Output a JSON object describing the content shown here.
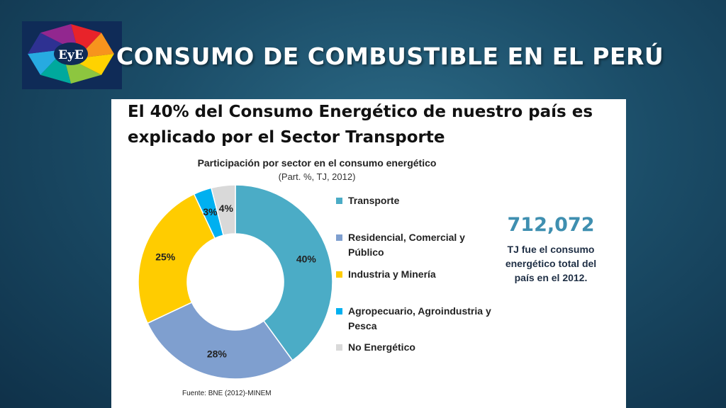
{
  "slide": {
    "title": "CONSUMO DE COMBUSTIBLE EN EL PERÚ",
    "logo_text": "EyE",
    "background_color": "#1b4d68"
  },
  "panel": {
    "headline": "El 40% del Consumo Energético de nuestro país es explicado por el Sector Transporte",
    "highlight": {
      "value": "712,072",
      "caption": "TJ fue el consumo energético total del país en el 2012."
    },
    "source": "Fuente: BNE (2012)-MINEM"
  },
  "chart_data": {
    "type": "pie",
    "variant": "donut",
    "title": "Participación por sector  en el consumo energético",
    "subtitle": "(Part. %, TJ, 2012)",
    "legend_position": "right",
    "slices": [
      {
        "label": "Transporte",
        "value": 40,
        "display": "40%",
        "color": "#4bacc6"
      },
      {
        "label": "Residencial, Comercial y Público",
        "value": 28,
        "display": "28%",
        "color": "#7f9fcf"
      },
      {
        "label": "Industria y Minería",
        "value": 25,
        "display": "25%",
        "color": "#ffcc00"
      },
      {
        "label": "Agropecuario, Agroindustria y Pesca",
        "value": 3,
        "display": "3%",
        "color": "#00b0f0"
      },
      {
        "label": "No Energético",
        "value": 4,
        "display": "4%",
        "color": "#d9d9d9"
      }
    ]
  }
}
